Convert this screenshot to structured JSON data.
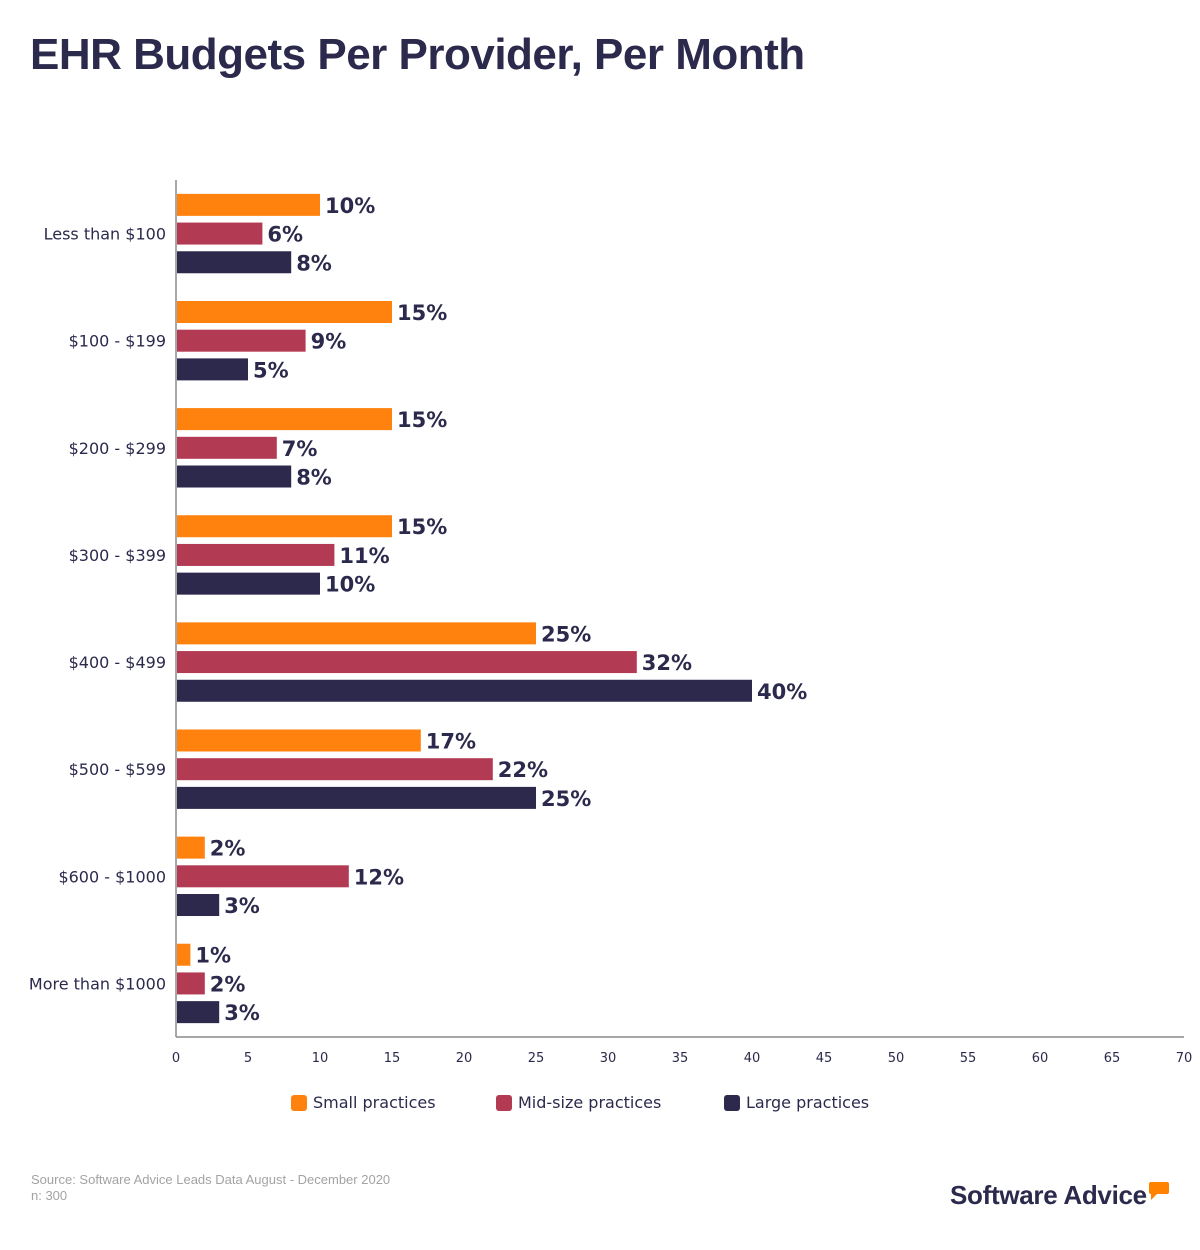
{
  "title": "EHR Budgets Per Provider, Per Month",
  "source": {
    "line1": "Source: Software Advice Leads Data August - December 2020",
    "line2": "n: 300"
  },
  "logo": {
    "text": "Software Advice",
    "icon": "speech-bubble-icon",
    "accent": "#ff8200"
  },
  "chart_data": {
    "type": "bar",
    "orientation": "horizontal",
    "title": "EHR Budgets Per Provider, Per Month",
    "xlabel": "",
    "ylabel": "",
    "categories": [
      "Less than $100",
      "$100 - $199",
      "$200 - $299",
      "$300 - $399",
      "$400 - $499",
      "$500 - $599",
      "$600 - $1000",
      "More than $1000"
    ],
    "series": [
      {
        "name": "Small practices",
        "color": "#ff820e",
        "values": [
          10,
          15,
          15,
          15,
          25,
          17,
          2,
          1
        ]
      },
      {
        "name": "Mid-size practices",
        "color": "#b23a52",
        "values": [
          6,
          9,
          7,
          11,
          32,
          22,
          12,
          2
        ]
      },
      {
        "name": "Large practices",
        "color": "#2c294c",
        "values": [
          8,
          5,
          8,
          10,
          40,
          25,
          3,
          3
        ]
      }
    ],
    "xlim": [
      0,
      70
    ],
    "xticks": [
      0,
      5,
      10,
      15,
      20,
      25,
      30,
      35,
      40,
      45,
      50,
      55,
      60,
      65,
      70
    ],
    "data_label_suffix": "%",
    "grid": false,
    "legend": "bottom-center"
  }
}
